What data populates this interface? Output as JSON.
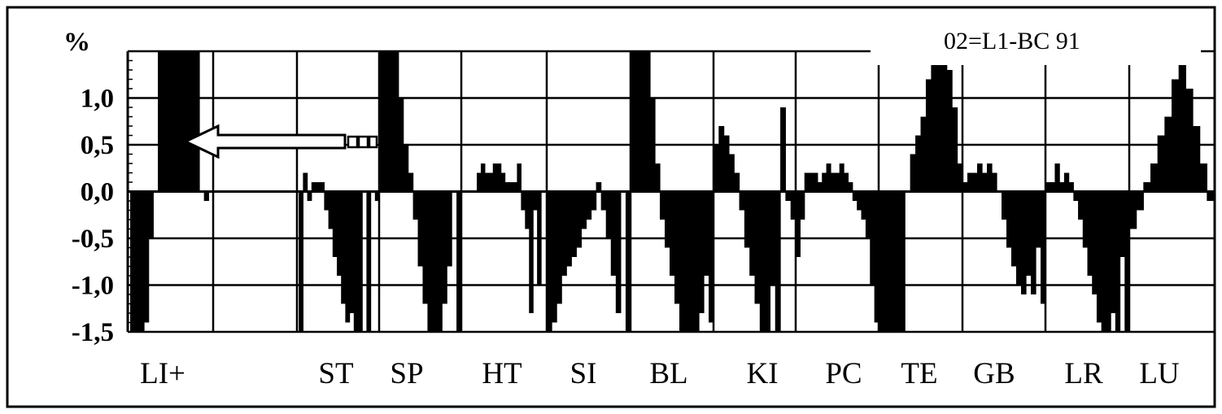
{
  "chart_data": {
    "type": "bar",
    "title": "02=L1-BC 91",
    "ylabel": "%",
    "ylim": [
      -1.5,
      1.5
    ],
    "yticks": [
      "1,0",
      "0,5",
      "0,0",
      "-0,5",
      "-1,0",
      "-1,5"
    ],
    "ytick_values": [
      1.0,
      0.5,
      0.0,
      -0.5,
      -1.0,
      -1.5
    ],
    "grid": true,
    "categories": [
      "LI+",
      "ST",
      "SP",
      "HT",
      "SI",
      "BL",
      "KI",
      "PC",
      "TE",
      "GB",
      "LR",
      "LU"
    ],
    "segments": [
      {
        "name": "LI+",
        "values": [
          -1.5,
          -1.5,
          -1.5,
          -1.4,
          -0.5,
          0,
          1.5,
          1.5,
          1.5,
          1.5,
          1.5,
          1.5,
          1.5,
          1.5,
          1.5,
          0,
          -0.1,
          0
        ]
      },
      {
        "name": "ST",
        "values": [
          0,
          -1.5,
          0.2,
          -0.1,
          0.1,
          0.1,
          0.1,
          -0.2,
          -0.4,
          -0.7,
          -0.9,
          -1.2,
          -1.4,
          -1.3,
          -1.5,
          -1.5,
          0,
          -1.5,
          0,
          -0.1
        ]
      },
      {
        "name": "SP",
        "values": [
          1.5,
          1.5,
          1.5,
          1.5,
          1.0,
          0.5,
          0.2,
          -0.3,
          -0.8,
          -1.2,
          -1.5,
          -1.5,
          -1.5,
          -1.2,
          -0.8,
          0,
          -1.5
        ]
      },
      {
        "name": "HT",
        "values": [
          0.2,
          0.3,
          0.2,
          0.2,
          0.3,
          0.3,
          0.2,
          0.1,
          0.1,
          0.1,
          0.3,
          -0.2,
          -0.4,
          -1.3,
          -0.2,
          -1.0,
          0
        ]
      },
      {
        "name": "SI",
        "values": [
          -1.5,
          -1.4,
          -1.2,
          -0.9,
          -0.8,
          -0.7,
          -0.6,
          -0.4,
          -0.3,
          -0.2,
          0.1,
          -0.2,
          -0.5,
          -0.9,
          -1.3,
          0,
          -1.5
        ]
      },
      {
        "name": "BL",
        "values": [
          1.5,
          1.5,
          1.5,
          1.5,
          1.0,
          0.3,
          -0.3,
          -0.6,
          -0.9,
          -1.2,
          -1.5,
          -1.5,
          -1.5,
          -1.5,
          -1.3,
          -0.9,
          -1.4
        ]
      },
      {
        "name": "KI",
        "values": [
          0.5,
          0.7,
          0.6,
          0.4,
          0.2,
          -0.2,
          -0.6,
          -0.9,
          -1.2,
          -1.5,
          -1.5,
          -1.0,
          -1.5,
          0.9,
          -0.1,
          -0.3
        ]
      },
      {
        "name": "PC",
        "values": [
          -0.7,
          -0.3,
          0.2,
          0.2,
          0.2,
          0.1,
          0.2,
          0.3,
          0.2,
          0.2,
          0.3,
          0.2,
          0.1,
          -0.1,
          -0.2,
          -0.3,
          -0.5,
          -1.0,
          -1.4
        ]
      },
      {
        "name": "TE",
        "values": [
          -1.5,
          -1.5,
          -1.5,
          -1.5,
          -1.5,
          0,
          0.4,
          0.6,
          0.8,
          1.2,
          1.5,
          1.5,
          1.5,
          1.3,
          0.9,
          0.3
        ]
      },
      {
        "name": "GB",
        "values": [
          0.1,
          0.2,
          0.2,
          0.3,
          0.2,
          0.3,
          0.2,
          0,
          -0.3,
          -0.6,
          -0.8,
          -1.0,
          -1.1,
          -0.9,
          -1.1,
          -0.6,
          -1.2
        ]
      },
      {
        "name": "LR",
        "values": [
          0.1,
          0.1,
          0.3,
          0.1,
          0.2,
          0.1,
          -0.1,
          -0.3,
          -0.6,
          -0.9,
          -1.1,
          -1.4,
          -1.5,
          -1.5,
          -1.3,
          -1.5,
          -0.7,
          -1.5
        ]
      },
      {
        "name": "LU",
        "values": [
          -0.4,
          -0.2,
          0.1,
          0.3,
          0.6,
          0.8,
          1.2,
          1.4,
          1.1,
          0.7,
          0.3,
          -0.1
        ]
      }
    ],
    "annotation": "left-pointing arrow at 0,5 pointing to LI+"
  }
}
